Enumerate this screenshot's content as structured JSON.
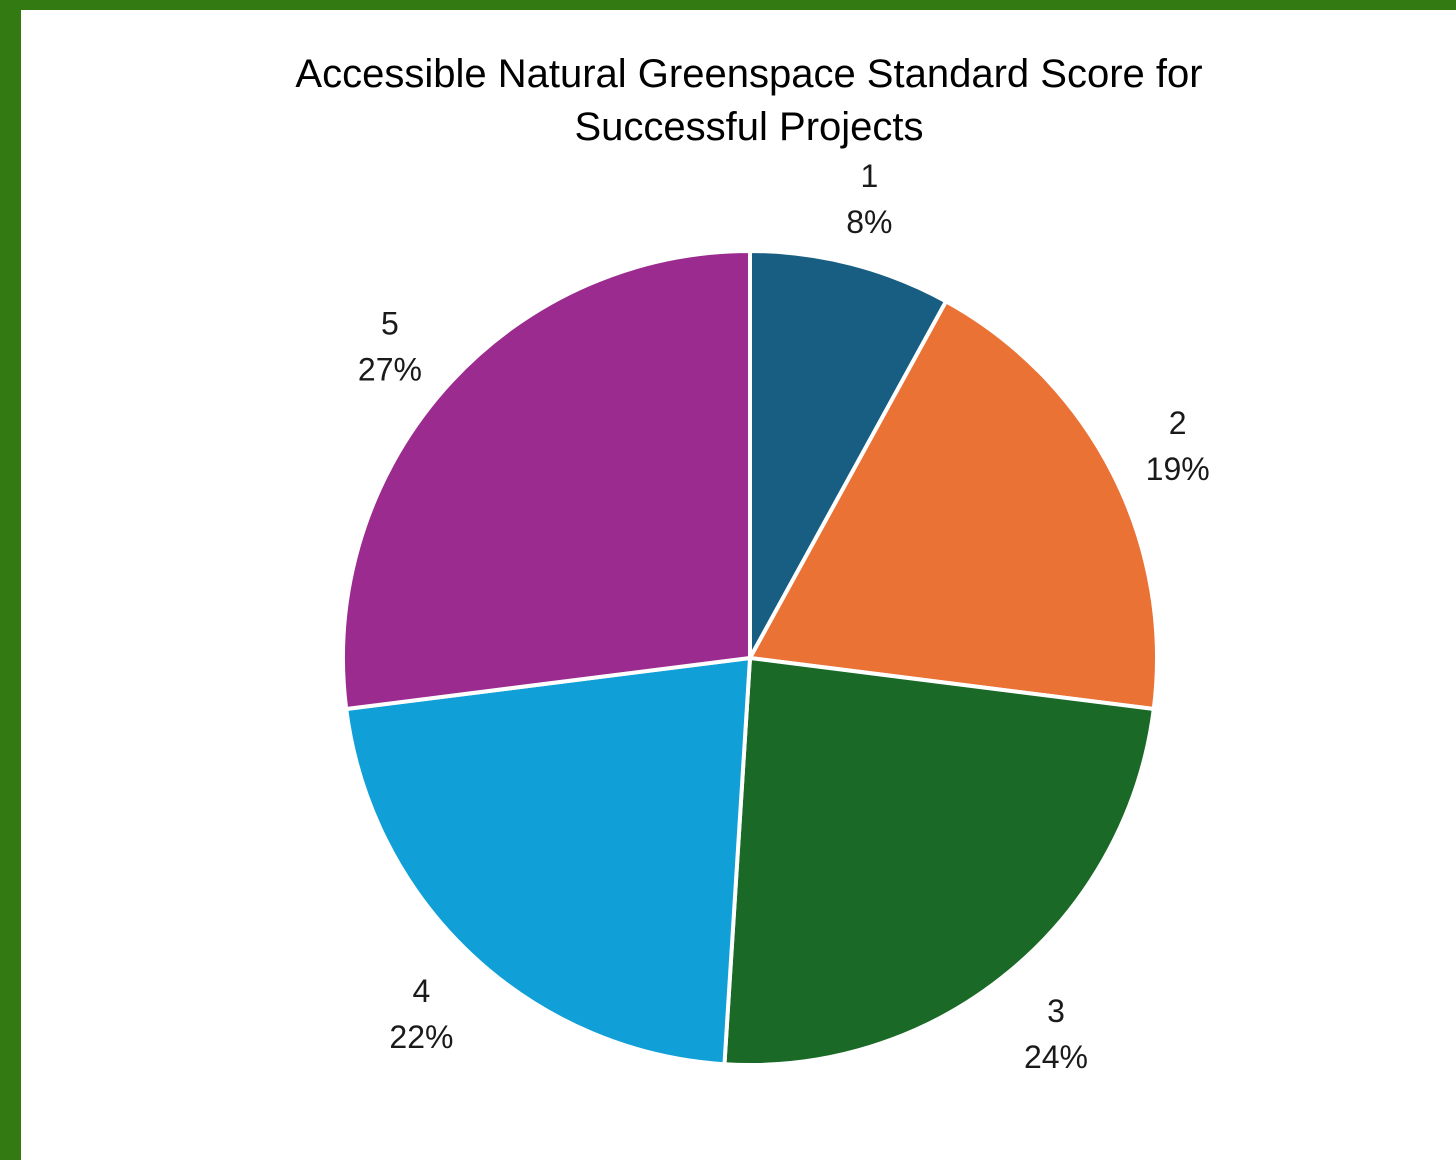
{
  "chart_data": {
    "type": "pie",
    "title": "Accessible Natural Greenspace Standard Score for Successful Projects",
    "title_lines": [
      "Accessible Natural Greenspace Standard Score for",
      "Successful Projects"
    ],
    "categories": [
      "1",
      "2",
      "3",
      "4",
      "5"
    ],
    "values": [
      8,
      19,
      24,
      22,
      27
    ],
    "value_labels": [
      "8%",
      "19%",
      "24%",
      "22%",
      "27%"
    ],
    "colors": [
      "#185e82",
      "#e97234",
      "#1a6926",
      "#109fd7",
      "#9c2b90"
    ],
    "start": "12 o'clock",
    "direction": "clockwise",
    "legend": "none"
  },
  "page": {
    "background": "#337a12",
    "panel_background": "#ffffff"
  }
}
